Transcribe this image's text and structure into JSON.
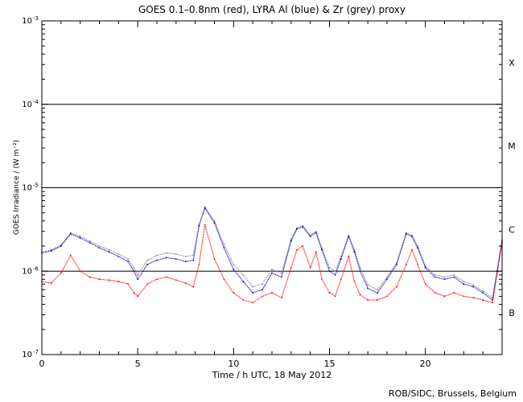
{
  "chart_data": {
    "type": "line",
    "title": "GOES 0.1–0.8nm (red), LYRA Al (blue) & Zr (grey) proxy",
    "xlabel": "Time / h UTC, 18 May 2012",
    "ylabel": "GOES Irradiance / (W m⁻²)",
    "xlim": [
      0,
      24
    ],
    "ylim_log10": [
      -7,
      -3
    ],
    "yscale": "log",
    "x_ticks": [
      0,
      5,
      10,
      15,
      20
    ],
    "y_tick_labels": [
      {
        "base": "10",
        "exp": "-7",
        "value": -7
      },
      {
        "base": "10",
        "exp": "-6",
        "value": -6
      },
      {
        "base": "10",
        "exp": "-5",
        "value": -5
      },
      {
        "base": "10",
        "exp": "-4",
        "value": -4
      },
      {
        "base": "10",
        "exp": "-3",
        "value": -3
      }
    ],
    "flare_class_lines": [
      -6,
      -5,
      -4
    ],
    "flare_classes": [
      {
        "label": "B",
        "center": -6.5
      },
      {
        "label": "C",
        "center": -5.5
      },
      {
        "label": "M",
        "center": -4.5
      },
      {
        "label": "X",
        "center": -3.5
      }
    ],
    "series": [
      {
        "color": "#0000cc",
        "x": [
          0,
          0.5,
          1.0,
          1.5,
          2.0,
          2.5,
          3.0,
          3.5,
          4.0,
          4.5,
          4.8,
          5.0,
          5.5,
          6.0,
          6.5,
          7.0,
          7.5,
          7.9,
          8.2,
          8.5,
          9.0,
          9.5,
          10.0,
          10.5,
          11.0,
          11.5,
          12.0,
          12.5,
          13.0,
          13.3,
          13.6,
          14.0,
          14.3,
          14.6,
          15.0,
          15.3,
          15.6,
          16.0,
          16.3,
          16.6,
          17.0,
          17.5,
          18.0,
          18.5,
          19.0,
          19.3,
          19.6,
          20.0,
          20.5,
          21.0,
          21.5,
          22.0,
          22.5,
          23.0,
          23.5,
          24.0
        ],
        "y": [
          1.65e-06,
          1.75e-06,
          2e-06,
          2.8e-06,
          2.5e-06,
          2.2e-06,
          1.9e-06,
          1.7e-06,
          1.5e-06,
          1.3e-06,
          1e-06,
          8e-07,
          1.2e-06,
          1.35e-06,
          1.45e-06,
          1.4e-06,
          1.3e-06,
          1.35e-06,
          3.5e-06,
          5.7e-06,
          3.8e-06,
          1.9e-06,
          1.05e-06,
          7.5e-07,
          5.5e-07,
          6e-07,
          9.5e-07,
          8.5e-07,
          2.3e-06,
          3.2e-06,
          3.4e-06,
          2.6e-06,
          2.9e-06,
          1.8e-06,
          1e-06,
          9e-07,
          1.4e-06,
          2.6e-06,
          1.7e-06,
          1e-06,
          6.2e-07,
          5.5e-07,
          8e-07,
          1.2e-06,
          2.8e-06,
          2.6e-06,
          1.9e-06,
          1.1e-06,
          8.5e-07,
          8e-07,
          8.5e-07,
          7e-07,
          6.5e-07,
          5.5e-07,
          4.5e-07,
          2.3e-06
        ]
      },
      {
        "color": "#888888",
        "x": [
          0,
          0.5,
          1.0,
          1.5,
          2.0,
          2.5,
          3.0,
          3.5,
          4.0,
          4.5,
          4.8,
          5.0,
          5.5,
          6.0,
          6.5,
          7.0,
          7.5,
          7.9,
          8.2,
          8.5,
          9.0,
          9.5,
          10.0,
          10.5,
          11.0,
          11.5,
          12.0,
          12.5,
          13.0,
          13.3,
          13.6,
          14.0,
          14.3,
          14.6,
          15.0,
          15.3,
          15.6,
          16.0,
          16.3,
          16.6,
          17.0,
          17.5,
          18.0,
          18.5,
          19.0,
          19.3,
          19.6,
          20.0,
          20.5,
          21.0,
          21.5,
          22.0,
          22.5,
          23.0,
          23.5,
          24.0
        ],
        "y": [
          1.7e-06,
          1.8e-06,
          2.05e-06,
          2.9e-06,
          2.6e-06,
          2.3e-06,
          2e-06,
          1.8e-06,
          1.6e-06,
          1.4e-06,
          1.1e-06,
          9e-07,
          1.35e-06,
          1.55e-06,
          1.65e-06,
          1.6e-06,
          1.5e-06,
          1.55e-06,
          3.6e-06,
          5.9e-06,
          4e-06,
          2.1e-06,
          1.2e-06,
          9e-07,
          6.5e-07,
          7e-07,
          1.05e-06,
          9.5e-07,
          2.4e-06,
          3.3e-06,
          3.5e-06,
          2.7e-06,
          3e-06,
          1.9e-06,
          1.1e-06,
          1e-06,
          1.5e-06,
          2.7e-06,
          1.8e-06,
          1.1e-06,
          6.8e-07,
          6e-07,
          8.5e-07,
          1.25e-06,
          2.9e-06,
          2.7e-06,
          2e-06,
          1.15e-06,
          9e-07,
          8.5e-07,
          9e-07,
          7.5e-07,
          6.8e-07,
          5.8e-07,
          4.8e-07,
          2.4e-06
        ]
      },
      {
        "color": "#ff0000",
        "x": [
          0,
          0.5,
          1.0,
          1.5,
          2.0,
          2.5,
          3.0,
          3.5,
          4.0,
          4.5,
          4.8,
          5.0,
          5.5,
          6.0,
          6.5,
          7.0,
          7.5,
          7.9,
          8.2,
          8.5,
          9.0,
          9.5,
          10.0,
          10.5,
          11.0,
          11.5,
          12.0,
          12.5,
          13.0,
          13.3,
          13.6,
          14.0,
          14.3,
          14.6,
          15.0,
          15.3,
          15.6,
          16.0,
          16.3,
          16.6,
          17.0,
          17.5,
          18.0,
          18.5,
          19.0,
          19.3,
          19.6,
          20.0,
          20.5,
          21.0,
          21.5,
          22.0,
          22.5,
          23.0,
          23.5,
          24.0
        ],
        "y": [
          7.5e-07,
          7.2e-07,
          9.5e-07,
          1.55e-06,
          1e-06,
          8.5e-07,
          8e-07,
          7.8e-07,
          7.5e-07,
          7e-07,
          5.5e-07,
          5e-07,
          7e-07,
          8e-07,
          8.5e-07,
          7.8e-07,
          7.2e-07,
          6.5e-07,
          1.2e-06,
          3.6e-06,
          1.4e-06,
          8e-07,
          5.5e-07,
          4.5e-07,
          4.2e-07,
          5e-07,
          5.5e-07,
          4.8e-07,
          1.1e-06,
          1.8e-06,
          2e-06,
          1.1e-06,
          1.7e-06,
          8e-07,
          5.5e-07,
          5e-07,
          8e-07,
          1.5e-06,
          7.5e-07,
          5.2e-07,
          4.5e-07,
          4.5e-07,
          5e-07,
          6.5e-07,
          1.2e-06,
          1.8e-06,
          1.2e-06,
          7e-07,
          5.5e-07,
          5e-07,
          5.5e-07,
          5e-07,
          4.8e-07,
          4.5e-07,
          4.2e-07,
          2.2e-06
        ]
      }
    ]
  },
  "footer": {
    "credit": "ROB/SIDC, Brussels, Belgium"
  }
}
